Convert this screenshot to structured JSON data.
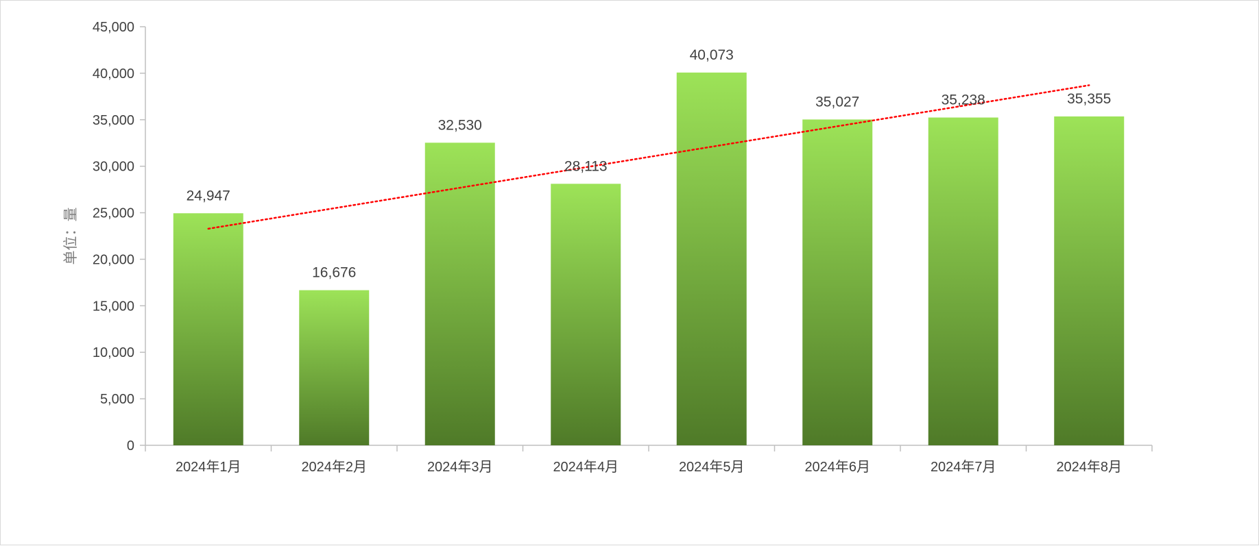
{
  "chart_data": {
    "type": "bar",
    "categories": [
      "2024年1月",
      "2024年2月",
      "2024年3月",
      "2024年4月",
      "2024年5月",
      "2024年6月",
      "2024年7月",
      "2024年8月"
    ],
    "values": [
      24947,
      16676,
      32530,
      28113,
      40073,
      35027,
      35238,
      35355
    ],
    "data_labels": [
      "24,947",
      "16,676",
      "32,530",
      "28,113",
      "40,073",
      "35,027",
      "35,238",
      "35,355"
    ],
    "title": "",
    "xlabel": "",
    "ylabel": "单位：量",
    "ylim": [
      0,
      45000
    ],
    "yticks": [
      0,
      5000,
      10000,
      15000,
      20000,
      25000,
      30000,
      35000,
      40000,
      45000
    ],
    "ytick_labels": [
      "0",
      "5,000",
      "10,000",
      "15,000",
      "20,000",
      "25,000",
      "30,000",
      "35,000",
      "40,000",
      "45,000"
    ],
    "grid": false,
    "legend": "none",
    "trendline": {
      "type": "linear",
      "style": "dotted",
      "color": "#ff0000"
    },
    "colors": {
      "bar_top": "#9de358",
      "bar_bottom": "#4f7a28",
      "axis": "#bfbfbf"
    }
  }
}
